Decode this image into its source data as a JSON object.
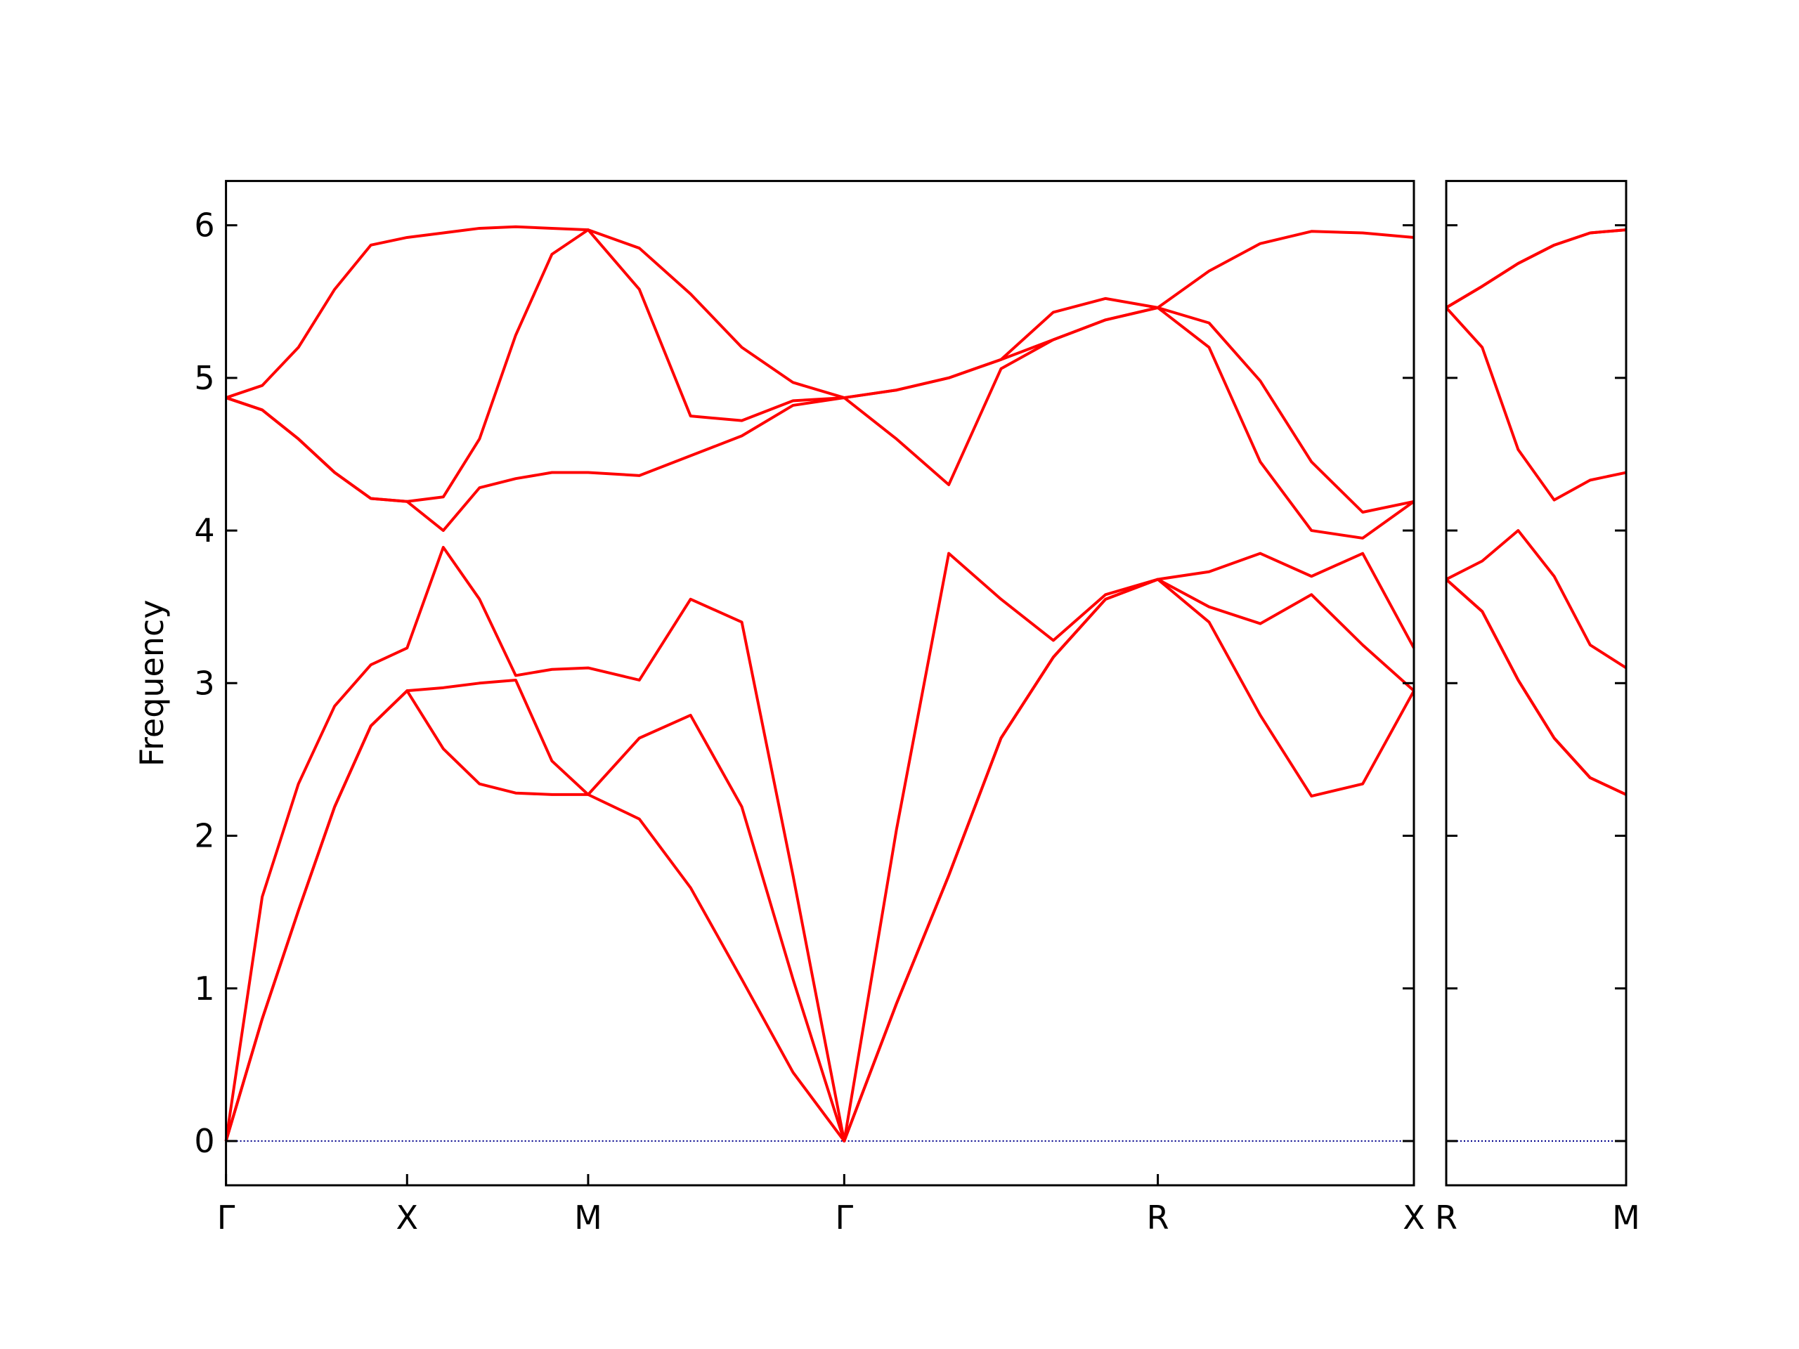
{
  "chart_data": [
    {
      "type": "line",
      "ylabel": "Frequency",
      "x": [
        0,
        0.1,
        0.2,
        0.3,
        0.4,
        0.5,
        0.6,
        0.7,
        0.8,
        0.9,
        1.0,
        1.1414,
        1.2828,
        1.4243,
        1.5657,
        1.7071,
        1.8514,
        1.9958,
        2.1401,
        2.2845,
        2.4288,
        2.5731,
        2.7146,
        2.856,
        2.9974,
        3.1388,
        3.2802
      ],
      "series": [
        {
          "color": "#ff0000",
          "values": [
            0,
            0.8,
            1.51,
            2.19,
            2.72,
            2.95,
            2.57,
            2.34,
            2.28,
            2.27,
            2.27,
            2.11,
            1.66,
            1.06,
            0.45,
            0,
            0.9,
            1.74,
            2.64,
            3.17,
            3.55,
            3.68,
            3.4,
            2.79,
            2.26,
            2.34,
            2.95
          ]
        },
        {
          "color": "#ff0000",
          "values": [
            0,
            0.8,
            1.51,
            2.19,
            2.72,
            2.95,
            2.97,
            3.0,
            3.02,
            2.49,
            2.27,
            2.64,
            2.79,
            2.19,
            1.06,
            0,
            0.9,
            1.74,
            2.64,
            3.17,
            3.55,
            3.68,
            3.5,
            3.39,
            3.58,
            3.25,
            2.95
          ]
        },
        {
          "color": "#ff0000",
          "values": [
            0,
            1.6,
            2.34,
            2.85,
            3.12,
            3.23,
            3.89,
            3.55,
            3.05,
            3.09,
            3.1,
            3.02,
            3.55,
            3.4,
            1.74,
            0,
            2.04,
            3.85,
            3.55,
            3.28,
            3.58,
            3.68,
            3.73,
            3.85,
            3.7,
            3.85,
            3.23
          ]
        },
        {
          "color": "#ff0000",
          "values": [
            4.87,
            4.79,
            4.6,
            4.38,
            4.21,
            4.19,
            4.0,
            4.28,
            4.34,
            4.38,
            4.38,
            4.36,
            4.49,
            4.62,
            4.82,
            4.87,
            4.6,
            4.3,
            5.06,
            5.25,
            5.38,
            5.46,
            5.2,
            4.45,
            4.0,
            3.95,
            4.19
          ]
        },
        {
          "color": "#ff0000",
          "values": [
            4.87,
            4.79,
            4.6,
            4.38,
            4.21,
            4.19,
            4.22,
            4.6,
            5.28,
            5.81,
            5.97,
            5.58,
            4.75,
            4.72,
            4.85,
            4.87,
            4.92,
            5.0,
            5.12,
            5.25,
            5.38,
            5.46,
            5.36,
            4.98,
            4.45,
            4.12,
            4.19
          ]
        },
        {
          "color": "#ff0000",
          "values": [
            4.87,
            4.95,
            5.2,
            5.58,
            5.87,
            5.92,
            5.95,
            5.98,
            5.99,
            5.98,
            5.97,
            5.85,
            5.55,
            5.2,
            4.97,
            4.87,
            4.92,
            5.0,
            5.12,
            5.43,
            5.52,
            5.46,
            5.7,
            5.88,
            5.96,
            5.95,
            5.92
          ]
        }
      ],
      "xlim": [
        0,
        3.2802
      ],
      "xticks": [
        {
          "value": 0,
          "label": "Γ"
        },
        {
          "value": 0.5,
          "label": "X"
        },
        {
          "value": 1.0,
          "label": "M"
        },
        {
          "value": 1.7071,
          "label": "Γ"
        },
        {
          "value": 2.5731,
          "label": "R"
        },
        {
          "value": 3.2802,
          "label": "X"
        }
      ],
      "ylim": [
        -0.29,
        6.29
      ],
      "yticks": [
        0,
        1,
        2,
        3,
        4,
        5,
        6
      ],
      "ytick_labels": true,
      "zero_line": {
        "value": 0,
        "color": "#00008b"
      }
    },
    {
      "type": "line",
      "x": [
        0,
        0.1,
        0.2,
        0.3,
        0.4,
        0.5
      ],
      "series": [
        {
          "color": "#ff0000",
          "values": [
            3.68,
            3.47,
            3.02,
            2.64,
            2.38,
            2.27
          ]
        },
        {
          "color": "#ff0000",
          "values": [
            3.68,
            3.47,
            3.02,
            2.64,
            2.38,
            2.27
          ]
        },
        {
          "color": "#ff0000",
          "values": [
            3.68,
            3.8,
            4.0,
            3.7,
            3.25,
            3.1
          ]
        },
        {
          "color": "#ff0000",
          "values": [
            5.46,
            5.2,
            4.53,
            4.2,
            4.33,
            4.38
          ]
        },
        {
          "color": "#ff0000",
          "values": [
            5.46,
            5.6,
            5.75,
            5.87,
            5.95,
            5.97
          ]
        },
        {
          "color": "#ff0000",
          "values": [
            5.46,
            5.6,
            5.75,
            5.87,
            5.95,
            5.97
          ]
        }
      ],
      "xlim": [
        0,
        0.5
      ],
      "xticks": [
        {
          "value": 0,
          "label": "R"
        },
        {
          "value": 0.5,
          "label": "M"
        }
      ],
      "ylim": [
        -0.29,
        6.29
      ],
      "yticks": [
        0,
        1,
        2,
        3,
        4,
        5,
        6
      ],
      "ytick_labels": false,
      "zero_line": {
        "value": 0,
        "color": "#00008b"
      }
    }
  ]
}
